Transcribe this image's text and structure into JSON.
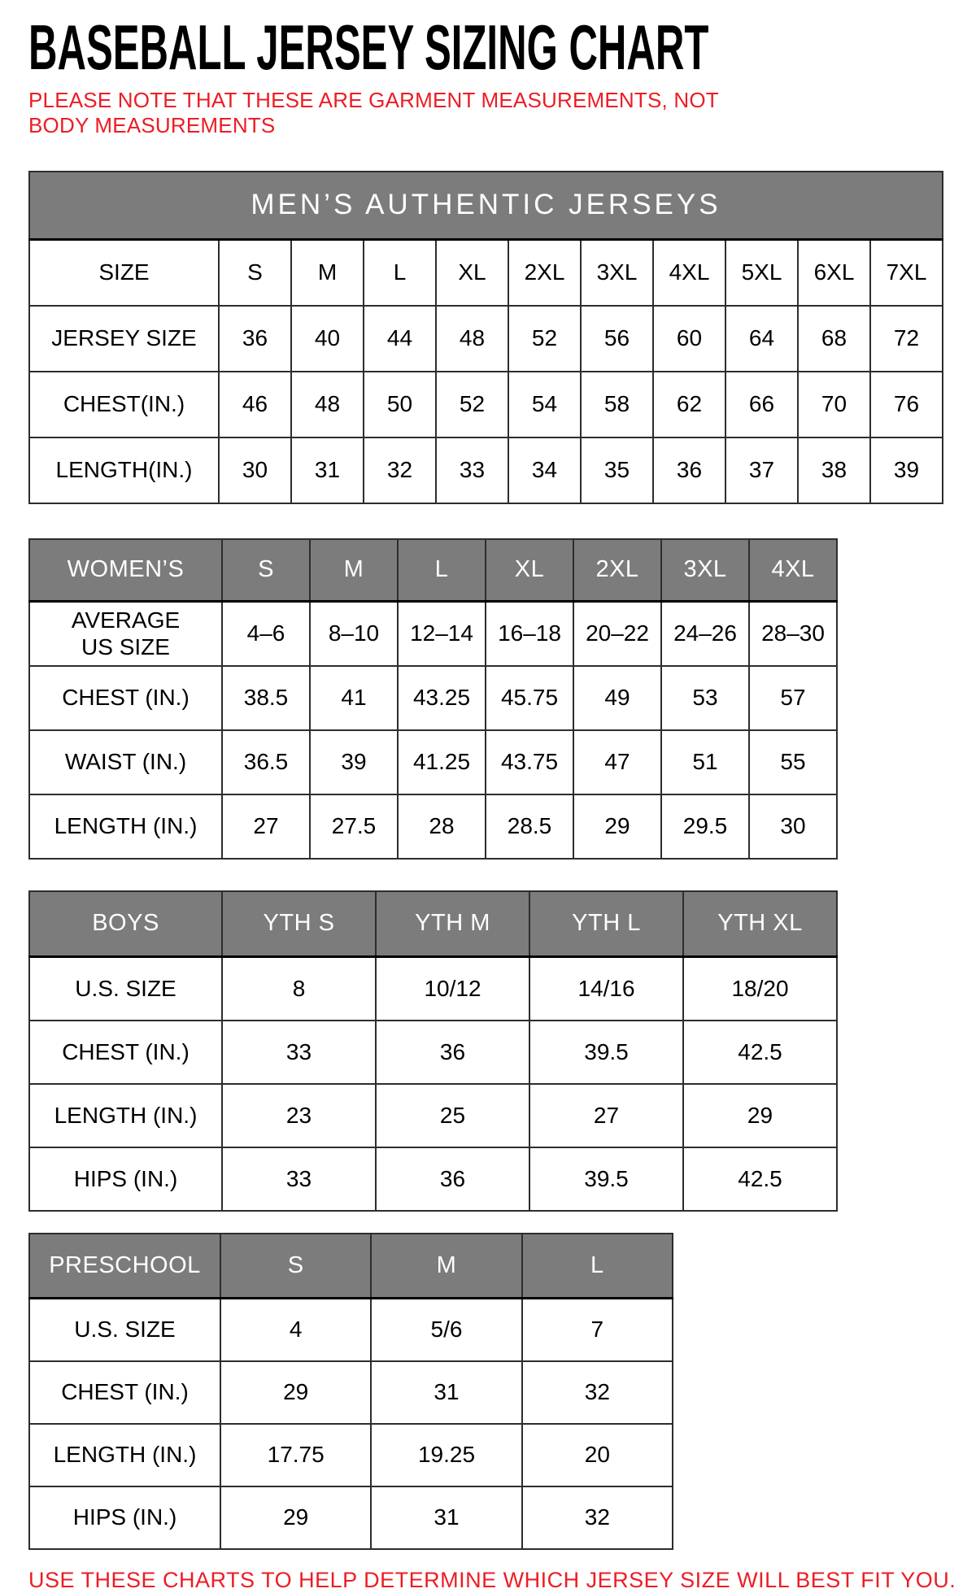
{
  "page": {
    "title": "BASEBALL JERSEY SIZING CHART",
    "note": "PLEASE NOTE THAT THESE ARE GARMENT MEASUREMENTS, NOT BODY MEASUREMENTS",
    "footer": "USE THESE CHARTS TO HELP DETERMINE WHICH JERSEY SIZE WILL BEST FIT YOU."
  },
  "colors": {
    "accent_red": "#ed1c24",
    "header_gray": "#7c7c7c",
    "header_text": "#ffffff",
    "border": "#2d2d2d"
  },
  "tables": [
    {
      "name": "mens",
      "merged_header_title": "MEN’S AUTHENTIC JERSEYS",
      "rows": [
        {
          "label": "SIZE",
          "values": [
            "S",
            "M",
            "L",
            "XL",
            "2XL",
            "3XL",
            "4XL",
            "5XL",
            "6XL",
            "7XL"
          ]
        },
        {
          "label": "JERSEY SIZE",
          "values": [
            "36",
            "40",
            "44",
            "48",
            "52",
            "56",
            "60",
            "64",
            "68",
            "72"
          ]
        },
        {
          "label": "CHEST(IN.)",
          "values": [
            "46",
            "48",
            "50",
            "52",
            "54",
            "58",
            "62",
            "66",
            "70",
            "76"
          ]
        },
        {
          "label": "LENGTH(IN.)",
          "values": [
            "30",
            "31",
            "32",
            "33",
            "34",
            "35",
            "36",
            "37",
            "38",
            "39"
          ]
        }
      ]
    },
    {
      "name": "womens",
      "header_cells": [
        "WOMEN’S",
        "S",
        "M",
        "L",
        "XL",
        "2XL",
        "3XL",
        "4XL"
      ],
      "rows": [
        {
          "label": "AVERAGE US SIZE",
          "values": [
            "4–6",
            "8–10",
            "12–14",
            "16–18",
            "20–22",
            "24–26",
            "28–30"
          ]
        },
        {
          "label": "CHEST (IN.)",
          "values": [
            "38.5",
            "41",
            "43.25",
            "45.75",
            "49",
            "53",
            "57"
          ]
        },
        {
          "label": "WAIST (IN.)",
          "values": [
            "36.5",
            "39",
            "41.25",
            "43.75",
            "47",
            "51",
            "55"
          ]
        },
        {
          "label": "LENGTH (IN.)",
          "values": [
            "27",
            "27.5",
            "28",
            "28.5",
            "29",
            "29.5",
            "30"
          ]
        }
      ]
    },
    {
      "name": "boys",
      "header_cells": [
        "BOYS",
        "YTH S",
        "YTH M",
        "YTH L",
        "YTH XL"
      ],
      "rows": [
        {
          "label": "U.S. SIZE",
          "values": [
            "8",
            "10/12",
            "14/16",
            "18/20"
          ]
        },
        {
          "label": "CHEST (IN.)",
          "values": [
            "33",
            "36",
            "39.5",
            "42.5"
          ]
        },
        {
          "label": "LENGTH (IN.)",
          "values": [
            "23",
            "25",
            "27",
            "29"
          ]
        },
        {
          "label": "HIPS (IN.)",
          "values": [
            "33",
            "36",
            "39.5",
            "42.5"
          ]
        }
      ]
    },
    {
      "name": "preschool",
      "header_cells": [
        "PRESCHOOL",
        "S",
        "M",
        "L"
      ],
      "rows": [
        {
          "label": "U.S. SIZE",
          "values": [
            "4",
            "5/6",
            "7"
          ]
        },
        {
          "label": "CHEST (IN.)",
          "values": [
            "29",
            "31",
            "32"
          ]
        },
        {
          "label": "LENGTH (IN.)",
          "values": [
            "17.75",
            "19.25",
            "20"
          ]
        },
        {
          "label": "HIPS (IN.)",
          "values": [
            "29",
            "31",
            "32"
          ]
        }
      ]
    }
  ]
}
